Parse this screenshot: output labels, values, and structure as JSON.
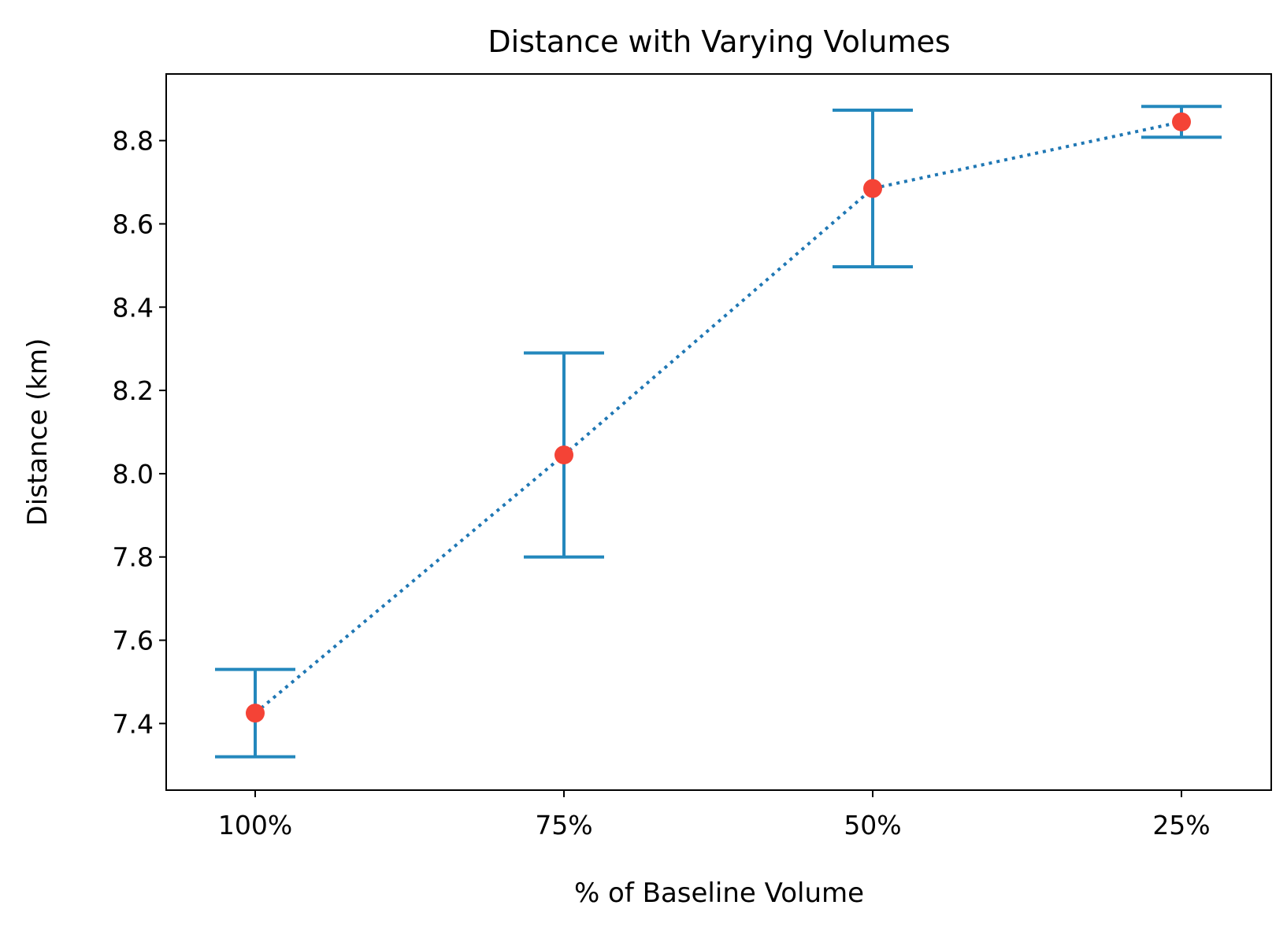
{
  "chart_data": {
    "type": "line",
    "title": "Distance with Varying Volumes",
    "xlabel": "% of Baseline Volume",
    "ylabel": "Distance (km)",
    "categories": [
      "100%",
      "75%",
      "50%",
      "25%"
    ],
    "series": [
      {
        "values": [
          7.425,
          8.045,
          8.685,
          8.845
        ],
        "error_low": [
          7.32,
          7.8,
          8.497,
          8.808
        ],
        "error_high": [
          7.53,
          8.29,
          8.873,
          8.882
        ]
      }
    ],
    "yticks": [
      7.4,
      7.6,
      7.8,
      8.0,
      8.2,
      8.4,
      8.6,
      8.8
    ],
    "ytick_labels": [
      "7.4",
      "7.6",
      "7.8",
      "8.0",
      "8.2",
      "8.4",
      "8.6",
      "8.8"
    ],
    "ylim": [
      7.24,
      8.96
    ],
    "grid": false,
    "colors": {
      "line": "#1f77b4",
      "errorbar": "#2488bd",
      "marker": "#f44336",
      "axes": "#000000"
    }
  }
}
